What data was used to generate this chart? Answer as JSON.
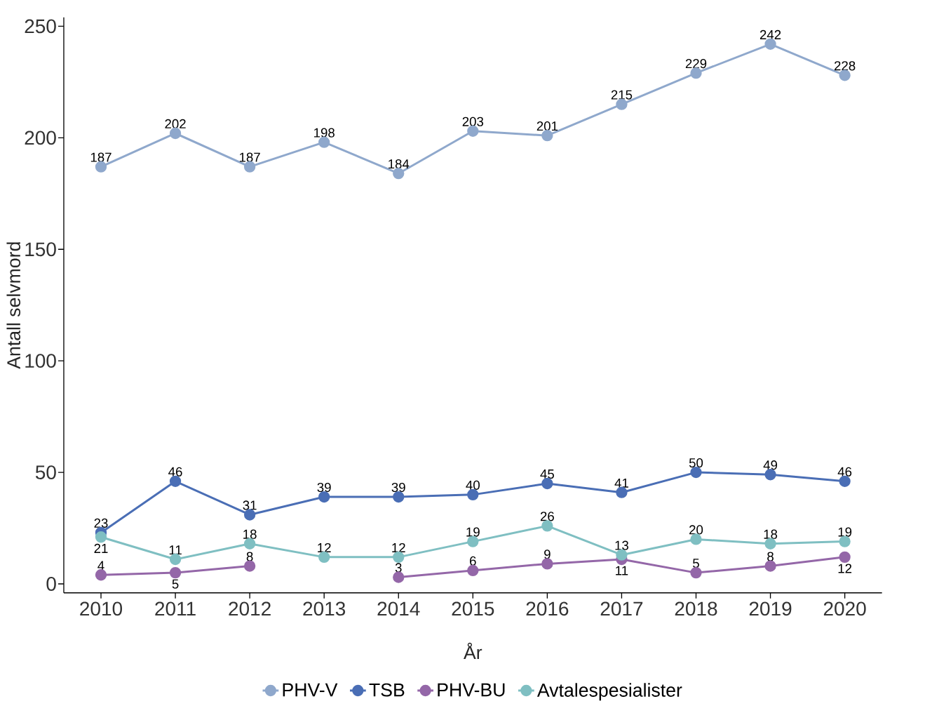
{
  "chart_data": {
    "type": "line",
    "xlabel": "År",
    "ylabel": "Antall selvmord",
    "categories": [
      "2010",
      "2011",
      "2012",
      "2013",
      "2014",
      "2015",
      "2016",
      "2017",
      "2018",
      "2019",
      "2020"
    ],
    "series": [
      {
        "name": "PHV-V",
        "color": "#8fa8cc",
        "values": [
          187,
          202,
          187,
          198,
          184,
          203,
          201,
          215,
          229,
          242,
          228
        ]
      },
      {
        "name": "TSB",
        "color": "#4a6eb5",
        "values": [
          23,
          46,
          31,
          39,
          39,
          40,
          45,
          41,
          50,
          49,
          46
        ]
      },
      {
        "name": "PHV-BU",
        "color": "#9467a8",
        "values": [
          4,
          5,
          8,
          null,
          3,
          6,
          9,
          11,
          5,
          8,
          12
        ]
      },
      {
        "name": "Avtalespesialister",
        "color": "#7fbfc2",
        "values": [
          21,
          11,
          18,
          12,
          12,
          19,
          26,
          13,
          20,
          18,
          19
        ]
      }
    ],
    "ylim": [
      -4,
      254
    ],
    "yticks": [
      0,
      50,
      100,
      150,
      200,
      250
    ],
    "grid": false,
    "legend": "bottom",
    "marker": "circle",
    "line_style": "solid",
    "data_labels": true
  }
}
